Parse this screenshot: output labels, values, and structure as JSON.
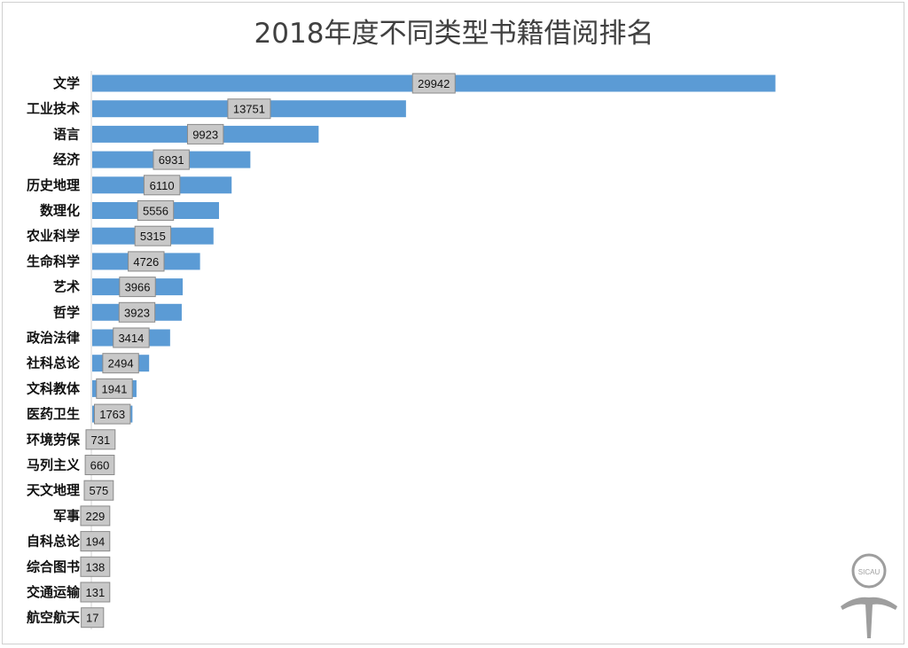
{
  "chart_data": {
    "type": "bar",
    "orientation": "horizontal",
    "title": "2018年度不同类型书籍借阅排名",
    "categories": [
      "文学",
      "工业技术",
      "语言",
      "经济",
      "历史地理",
      "数理化",
      "农业科学",
      "生命科学",
      "艺术",
      "哲学",
      "政治法律",
      "社科总论",
      "文科教体",
      "医药卫生",
      "环境劳保",
      "马列主义",
      "天文地理",
      "军事",
      "自科总论",
      "综合图书",
      "交通运输",
      "航空航天"
    ],
    "values": [
      29942,
      13751,
      9923,
      6931,
      6110,
      5556,
      5315,
      4726,
      3966,
      3923,
      3414,
      2494,
      1941,
      1763,
      731,
      660,
      575,
      229,
      194,
      138,
      131,
      17
    ],
    "value_labels": [
      "29942",
      "13751",
      "9923",
      "6931",
      "6110",
      "5556",
      "5315",
      "4726",
      "3966",
      "3923",
      "3414",
      "2494",
      "1941",
      "1763",
      "731",
      "660",
      "575",
      "229",
      "194",
      "138",
      "131",
      "17"
    ],
    "xlim": [
      0,
      30000
    ],
    "xlabel": "",
    "ylabel": "",
    "grid": false,
    "legend": "none",
    "colors": {
      "bar": "#5b9bd5",
      "label_box": "#c8c8c8",
      "label_border": "#8a8a8a",
      "title": "#404040"
    }
  },
  "logo": {
    "text": "SICAU",
    "color": "#9e9e9e"
  }
}
